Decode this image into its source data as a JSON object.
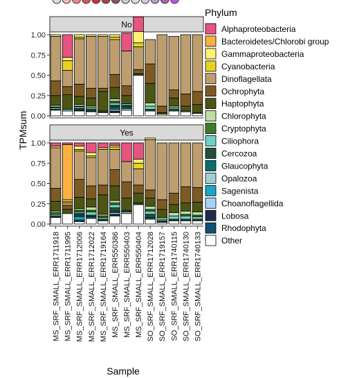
{
  "chart_data": {
    "type": "bar",
    "stacked": true,
    "ylabel": "TPMsum",
    "xlabel": "Sample",
    "ylim": [
      0,
      1
    ],
    "yticks": [
      "0.00",
      "0.25",
      "0.50",
      "0.75",
      "1.00"
    ],
    "facets": [
      "No",
      "Yes"
    ],
    "legend_title": "Phylum",
    "legend_position": "right",
    "categories": [
      "MS_SRF_SMALL_ERR1711918",
      "MS_SRF_SMALL_ERR1711995",
      "MS_SRF_SMALL_ERR1712006",
      "MS_SRF_SMALL_ERR1712022",
      "MS_SRF_SMALL_ERR1719164",
      "MS_SRF_SMALL_ERR550386",
      "MS_SRF_SMALL_ERR550403",
      "MS_SRF_SMALL_ERR550404",
      "SO_SRF_SMALL_ERR1712028",
      "SO_SRF_SMALL_ERR1719157",
      "SO_SRF_SMALL_ERR1740115",
      "SO_SRF_SMALL_ERR1740130",
      "SO_SRF_SMALL_ERR1740133"
    ],
    "series_order_bottom_to_top": [
      "Other",
      "Rhodophyta",
      "Lobosa",
      "Choanoflagellida",
      "Sagenista",
      "Opalozoa",
      "Glaucophyta",
      "Cercozoa",
      "Ciliophora",
      "Cryptophyta",
      "Chlorophyta",
      "Haptophyta",
      "Ochrophyta",
      "Dinoflagellata",
      "Cyanobacteria",
      "Gammaproteobacteria",
      "Bacteroidetes/Chlorobi group",
      "Alphaproteobacteria"
    ],
    "series": [
      {
        "name": "Alphaproteobacteria",
        "color": "#E75480",
        "values_No": [
          0,
          0.28,
          0,
          0,
          0,
          0,
          0.22,
          0.18,
          0,
          0,
          0,
          0,
          0
        ],
        "values_Yes": [
          0.04,
          0.02,
          0.04,
          0.12,
          0.06,
          0.03,
          0.23,
          0.2,
          0,
          0,
          0,
          0,
          0
        ]
      },
      {
        "name": "Bacteroidetes/Chlorobi group",
        "color": "#FBB040",
        "values_No": [
          0,
          0,
          0,
          0,
          0,
          0,
          0,
          0,
          0,
          0,
          0,
          0,
          0
        ],
        "values_Yes": [
          0,
          0.68,
          0,
          0,
          0,
          0,
          0,
          0,
          0,
          0,
          0,
          0,
          0
        ]
      },
      {
        "name": "Gammaproteobacteria",
        "color": "#FFF176",
        "values_No": [
          0.02,
          0.04,
          0.03,
          0.02,
          0.02,
          0.03,
          0,
          0.14,
          0,
          0,
          0,
          0,
          0
        ],
        "values_Yes": [
          0.02,
          0.02,
          0.04,
          0.04,
          0.02,
          0.02,
          0,
          0.05,
          0.02,
          0,
          0,
          0,
          0
        ]
      },
      {
        "name": "Cyanobacteria",
        "color": "#E7D21F",
        "values_No": [
          0,
          0.12,
          0.02,
          0,
          0,
          0.03,
          0,
          0.05,
          0,
          0,
          0,
          0,
          0
        ],
        "values_Yes": [
          0,
          0.02,
          0.02,
          0.02,
          0,
          0.03,
          0,
          0.07,
          0,
          0,
          0,
          0,
          0
        ]
      },
      {
        "name": "Dinoflagellata",
        "color": "#BE9E6E",
        "values_No": [
          0.55,
          0.2,
          0.56,
          0.64,
          0.64,
          0.43,
          0.43,
          0.28,
          0.3,
          0.88,
          0.66,
          0.73,
          0.7
        ],
        "values_Yes": [
          0.5,
          0.03,
          0.35,
          0.35,
          0.44,
          0.25,
          0.25,
          0.2,
          0.62,
          0.7,
          0.62,
          0.54,
          0.55
        ]
      },
      {
        "name": "Ochrophyta",
        "color": "#7E5A23",
        "values_No": [
          0.18,
          0.1,
          0.15,
          0.12,
          0.04,
          0.16,
          0.12,
          0.05,
          0.24,
          0.08,
          0.1,
          0.15,
          0.16
        ],
        "values_Yes": [
          0.16,
          0.05,
          0.22,
          0.16,
          0.12,
          0.2,
          0.2,
          0.1,
          0.1,
          0.12,
          0.14,
          0.2,
          0.18
        ]
      },
      {
        "name": "Haptophyta",
        "color": "#4D5514",
        "values_No": [
          0.12,
          0.18,
          0.1,
          0.1,
          0.24,
          0.14,
          0.1,
          0,
          0.24,
          0.02,
          0.1,
          0.06,
          0.1
        ],
        "values_Yes": [
          0.12,
          0.05,
          0.14,
          0.1,
          0.24,
          0.18,
          0.15,
          0.12,
          0.1,
          0.1,
          0.1,
          0.1,
          0.12
        ]
      },
      {
        "name": "Chlorophyta",
        "color": "#BCE0A0",
        "values_No": [
          0.02,
          0,
          0.02,
          0.02,
          0,
          0.03,
          0,
          0,
          0.04,
          0,
          0.02,
          0.01,
          0.01
        ],
        "values_Yes": [
          0.02,
          0,
          0.02,
          0.04,
          0.02,
          0.03,
          0,
          0,
          0.04,
          0.02,
          0.04,
          0.04,
          0.04
        ]
      },
      {
        "name": "Cryptophyta",
        "color": "#3D7C2A",
        "values_No": [
          0.01,
          0,
          0.01,
          0,
          0,
          0.02,
          0,
          0,
          0,
          0,
          0,
          0,
          0
        ],
        "values_Yes": [
          0.02,
          0,
          0.02,
          0.02,
          0.02,
          0.02,
          0,
          0,
          0.02,
          0,
          0,
          0.02,
          0.02
        ]
      },
      {
        "name": "Ciliophora",
        "color": "#6DD3C4",
        "values_No": [
          0.02,
          0.02,
          0.02,
          0.02,
          0,
          0.03,
          0.02,
          0,
          0.04,
          0,
          0.02,
          0,
          0
        ],
        "values_Yes": [
          0.02,
          0,
          0.02,
          0.04,
          0.02,
          0.04,
          0,
          0,
          0.04,
          0.02,
          0.04,
          0.04,
          0.03
        ]
      },
      {
        "name": "Cercozoa",
        "color": "#24503A",
        "values_No": [
          0.01,
          0,
          0.02,
          0.02,
          0.02,
          0.02,
          0.02,
          0.02,
          0.02,
          0,
          0.02,
          0,
          0
        ],
        "values_Yes": [
          0.02,
          0,
          0.02,
          0.02,
          0.02,
          0.04,
          0.02,
          0.02,
          0.04,
          0.02,
          0.02,
          0.02,
          0.02
        ]
      },
      {
        "name": "Glaucophyta",
        "color": "#0B6E6E",
        "values_No": [
          0,
          0,
          0.01,
          0.01,
          0,
          0.03,
          0.02,
          0,
          0,
          0,
          0,
          0,
          0
        ],
        "values_Yes": [
          0,
          0,
          0.02,
          0.02,
          0,
          0.02,
          0,
          0,
          0.02,
          0,
          0,
          0,
          0
        ]
      },
      {
        "name": "Opalozoa",
        "color": "#9FCFCF",
        "values_No": [
          0,
          0,
          0,
          0,
          0,
          0.02,
          0.02,
          0,
          0,
          0,
          0,
          0,
          0
        ],
        "values_Yes": [
          0,
          0,
          0,
          0,
          0,
          0.02,
          0.02,
          0,
          0,
          0,
          0,
          0,
          0
        ]
      },
      {
        "name": "Sagenista",
        "color": "#1AA7C7",
        "values_No": [
          0,
          0,
          0,
          0,
          0,
          0,
          0,
          0,
          0,
          0,
          0,
          0,
          0
        ],
        "values_Yes": [
          0,
          0,
          0.04,
          0,
          0,
          0,
          0,
          0,
          0,
          0,
          0,
          0,
          0
        ]
      },
      {
        "name": "Choanoflagellida",
        "color": "#A9D1F7",
        "values_No": [
          0,
          0,
          0,
          0,
          0,
          0,
          0,
          0,
          0,
          0,
          0,
          0,
          0
        ],
        "values_Yes": [
          0,
          0,
          0,
          0,
          0,
          0,
          0,
          0,
          0,
          0,
          0,
          0,
          0
        ]
      },
      {
        "name": "Lobosa",
        "color": "#1E2E4A",
        "values_No": [
          0,
          0,
          0,
          0,
          0,
          0.02,
          0,
          0,
          0,
          0,
          0,
          0,
          0
        ],
        "values_Yes": [
          0,
          0,
          0,
          0,
          0,
          0.02,
          0,
          0,
          0,
          0,
          0,
          0,
          0
        ]
      },
      {
        "name": "Rhodophyta",
        "color": "#0E4F73",
        "values_No": [
          0,
          0,
          0,
          0,
          0,
          0,
          0,
          0,
          0,
          0,
          0,
          0,
          0
        ],
        "values_Yes": [
          0,
          0,
          0.02,
          0,
          0,
          0,
          0,
          0,
          0,
          0,
          0,
          0,
          0
        ]
      },
      {
        "name": "Other",
        "color": "#FFFFFF",
        "values_No": [
          0.07,
          0.06,
          0.06,
          0.05,
          0.04,
          0.04,
          0.07,
          0.5,
          0.06,
          0.02,
          0.06,
          0.05,
          0.03
        ],
        "values_Yes": [
          0.08,
          0.13,
          0.03,
          0.07,
          0.04,
          0.1,
          0.13,
          0.24,
          0.06,
          0.02,
          0.04,
          0.04,
          0.04
        ]
      }
    ]
  }
}
